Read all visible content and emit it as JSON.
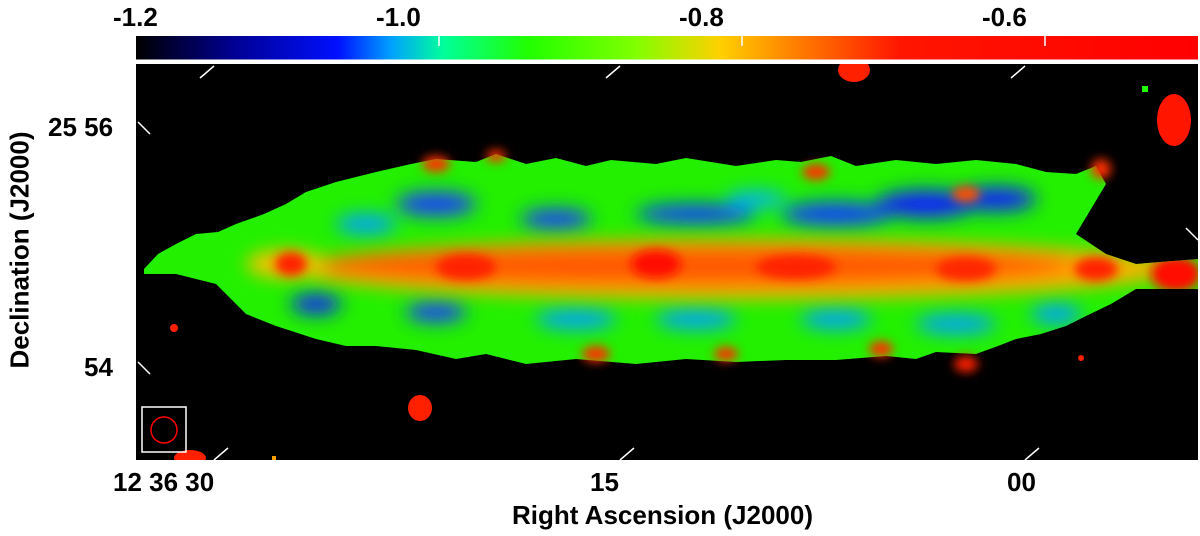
{
  "colorbar": {
    "ticks": [
      {
        "label": "-1.2",
        "value": -1.2
      },
      {
        "label": "-1.0",
        "value": -1.0
      },
      {
        "label": "-0.8",
        "value": -0.8
      },
      {
        "label": "-0.6",
        "value": -0.6
      }
    ],
    "range": [
      -1.2,
      -0.5
    ],
    "colormap": [
      "#000000",
      "#000080",
      "#0000ff",
      "#00aaff",
      "#00ff99",
      "#22ff00",
      "#99ff00",
      "#ffcc00",
      "#ff7a00",
      "#ff0000",
      "#ff0000"
    ]
  },
  "axes": {
    "xlabel": "Right Ascension (J2000)",
    "ylabel": "Declination (J2000)",
    "xticks": [
      {
        "label": "12 36 30",
        "value": 30
      },
      {
        "label": "15",
        "value": 15
      },
      {
        "label": "00",
        "value": 0
      }
    ],
    "yticks": [
      {
        "label": "25 56",
        "value": 56
      },
      {
        "label": "54",
        "value": 54
      }
    ]
  },
  "chart_data": {
    "type": "heatmap",
    "xlabel": "Right Ascension (J2000)",
    "ylabel": "Declination (J2000)",
    "colorbar_range": [
      -1.2,
      -0.5
    ],
    "colorbar_ticks": [
      -1.2,
      -1.0,
      -0.8,
      -0.6
    ],
    "x_ticks": [
      "12 36 30",
      "15",
      "00"
    ],
    "y_ticks": [
      "25 56",
      "54"
    ],
    "background_color": "#000000",
    "beam_color": "#ff0000",
    "beam_box_color": "#ffffff"
  }
}
